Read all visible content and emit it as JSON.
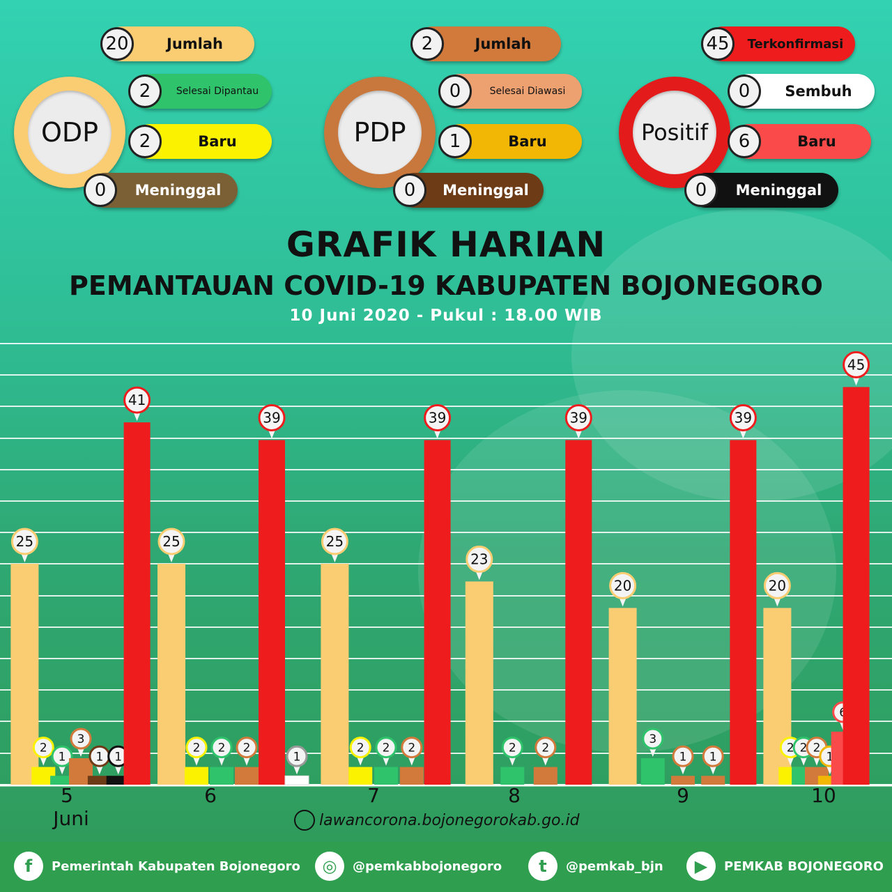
{
  "summary": {
    "odp": {
      "title": "ODP",
      "jumlah": "20",
      "jumlah_label": "Jumlah",
      "selesai": "2",
      "selesai_label": "Selesai Dipantau",
      "baru": "2",
      "baru_label": "Baru",
      "meninggal": "0",
      "meninggal_label": "Meninggal"
    },
    "pdp": {
      "title": "PDP",
      "jumlah": "2",
      "jumlah_label": "Jumlah",
      "selesai": "0",
      "selesai_label": "Selesai Diawasi",
      "baru": "1",
      "baru_label": "Baru",
      "meninggal": "0",
      "meninggal_label": "Meninggal"
    },
    "positif": {
      "title": "Positif",
      "jumlah": "45",
      "jumlah_label": "Terkonfirmasi",
      "selesai": "0",
      "selesai_label": "Sembuh",
      "baru": "6",
      "baru_label": "Baru",
      "meninggal": "0",
      "meninggal_label": "Meninggal"
    }
  },
  "header": {
    "title": "GRAFIK HARIAN",
    "subtitle": "PEMANTAUAN COVID-19 KABUPATEN BOJONEGORO",
    "date": "10 Juni 2020 - Pukul : 18.00 WIB"
  },
  "colors": {
    "odp_jumlah": "#fbcd72",
    "odp_baru": "#fbf200",
    "odp_selesai": "#2fc46c",
    "pdp_jumlah": "#d27a3c",
    "pdp_baru": "#f2b705",
    "pdp_meninggal": "#6e3b17",
    "pos_jumlah": "#ee1c1c",
    "pos_baru": "#fb4a4a",
    "pos_sembuh": "#ffffff",
    "pos_meninggal": "#111111"
  },
  "chart_data": {
    "type": "bar",
    "categories": [
      "5",
      "6",
      "7",
      "8",
      "9",
      "10"
    ],
    "month_label": "Juni",
    "ylim": [
      0,
      50
    ],
    "groups": [
      {
        "category": "5",
        "bars": [
          {
            "key": "odp_jumlah",
            "value": 25
          },
          {
            "key": "odp_baru",
            "value": 2
          },
          {
            "key": "odp_selesai",
            "value": 1
          },
          {
            "key": "pdp_jumlah",
            "value": 3
          },
          {
            "key": "pdp_meninggal",
            "value": 1
          },
          {
            "key": "pos_meninggal",
            "value": 1
          },
          {
            "key": "pos_jumlah",
            "value": 41
          }
        ]
      },
      {
        "category": "6",
        "bars": [
          {
            "key": "odp_jumlah",
            "value": 25
          },
          {
            "key": "odp_baru",
            "value": 2
          },
          {
            "key": "odp_selesai",
            "value": 2
          },
          {
            "key": "pdp_jumlah",
            "value": 2
          },
          {
            "key": "pos_jumlah",
            "value": 39
          },
          {
            "key": "pos_sembuh",
            "value": 1
          }
        ]
      },
      {
        "category": "7",
        "bars": [
          {
            "key": "odp_jumlah",
            "value": 25
          },
          {
            "key": "odp_baru",
            "value": 2
          },
          {
            "key": "odp_selesai",
            "value": 2
          },
          {
            "key": "pdp_jumlah",
            "value": 2
          },
          {
            "key": "pos_jumlah",
            "value": 39
          }
        ]
      },
      {
        "category": "8",
        "bars": [
          {
            "key": "odp_jumlah",
            "value": 23
          },
          {
            "key": "odp_selesai",
            "value": 2
          },
          {
            "key": "pdp_jumlah",
            "value": 2
          },
          {
            "key": "pos_jumlah",
            "value": 39
          }
        ]
      },
      {
        "category": "9",
        "bars": [
          {
            "key": "odp_jumlah",
            "value": 20
          },
          {
            "key": "odp_selesai",
            "value": 3
          },
          {
            "key": "pdp_jumlah",
            "value": 1
          },
          {
            "key": "pdp_jumlah",
            "value": 1
          },
          {
            "key": "pos_jumlah",
            "value": 39
          }
        ]
      },
      {
        "category": "10",
        "bars": [
          {
            "key": "odp_jumlah",
            "value": 20
          },
          {
            "key": "odp_baru",
            "value": 2
          },
          {
            "key": "odp_selesai",
            "value": 2
          },
          {
            "key": "pdp_jumlah",
            "value": 2
          },
          {
            "key": "pdp_baru",
            "value": 1
          },
          {
            "key": "pos_baru",
            "value": 6
          },
          {
            "key": "pos_jumlah",
            "value": 45
          }
        ]
      }
    ]
  },
  "website": "lawancorona.bojonegorokab.go.id",
  "footer": {
    "facebook": "Pemerintah Kabupaten Bojonegoro",
    "instagram": "@pemkabbojonegoro",
    "twitter": "@pemkab_bjn",
    "youtube": "PEMKAB BOJONEGORO",
    "facebook_icon": "facebook-icon",
    "instagram_icon": "instagram-icon",
    "twitter_icon": "twitter-icon",
    "youtube_icon": "youtube-icon"
  }
}
